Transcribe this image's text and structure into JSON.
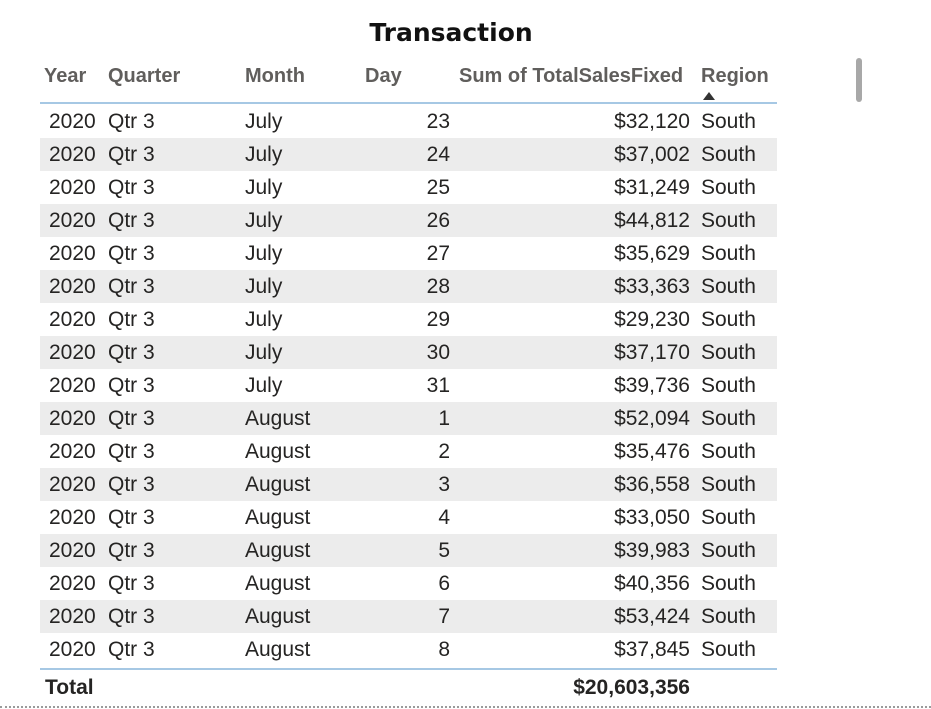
{
  "title": "Transaction",
  "headers": {
    "year": "Year",
    "quarter": "Quarter",
    "month": "Month",
    "day": "Day",
    "sum": "Sum of TotalSalesFixed",
    "region": "Region"
  },
  "sort": {
    "column": "Region",
    "direction": "ascending"
  },
  "rows": [
    {
      "year": "2020",
      "quarter": "Qtr 3",
      "month": "July",
      "day": "23",
      "sum": "$32,120",
      "region": "South"
    },
    {
      "year": "2020",
      "quarter": "Qtr 3",
      "month": "July",
      "day": "24",
      "sum": "$37,002",
      "region": "South"
    },
    {
      "year": "2020",
      "quarter": "Qtr 3",
      "month": "July",
      "day": "25",
      "sum": "$31,249",
      "region": "South"
    },
    {
      "year": "2020",
      "quarter": "Qtr 3",
      "month": "July",
      "day": "26",
      "sum": "$44,812",
      "region": "South"
    },
    {
      "year": "2020",
      "quarter": "Qtr 3",
      "month": "July",
      "day": "27",
      "sum": "$35,629",
      "region": "South"
    },
    {
      "year": "2020",
      "quarter": "Qtr 3",
      "month": "July",
      "day": "28",
      "sum": "$33,363",
      "region": "South"
    },
    {
      "year": "2020",
      "quarter": "Qtr 3",
      "month": "July",
      "day": "29",
      "sum": "$29,230",
      "region": "South"
    },
    {
      "year": "2020",
      "quarter": "Qtr 3",
      "month": "July",
      "day": "30",
      "sum": "$37,170",
      "region": "South"
    },
    {
      "year": "2020",
      "quarter": "Qtr 3",
      "month": "July",
      "day": "31",
      "sum": "$39,736",
      "region": "South"
    },
    {
      "year": "2020",
      "quarter": "Qtr 3",
      "month": "August",
      "day": "1",
      "sum": "$52,094",
      "region": "South"
    },
    {
      "year": "2020",
      "quarter": "Qtr 3",
      "month": "August",
      "day": "2",
      "sum": "$35,476",
      "region": "South"
    },
    {
      "year": "2020",
      "quarter": "Qtr 3",
      "month": "August",
      "day": "3",
      "sum": "$36,558",
      "region": "South"
    },
    {
      "year": "2020",
      "quarter": "Qtr 3",
      "month": "August",
      "day": "4",
      "sum": "$33,050",
      "region": "South"
    },
    {
      "year": "2020",
      "quarter": "Qtr 3",
      "month": "August",
      "day": "5",
      "sum": "$39,983",
      "region": "South"
    },
    {
      "year": "2020",
      "quarter": "Qtr 3",
      "month": "August",
      "day": "6",
      "sum": "$40,356",
      "region": "South"
    },
    {
      "year": "2020",
      "quarter": "Qtr 3",
      "month": "August",
      "day": "7",
      "sum": "$53,424",
      "region": "South"
    },
    {
      "year": "2020",
      "quarter": "Qtr 3",
      "month": "August",
      "day": "8",
      "sum": "$37,845",
      "region": "South"
    }
  ],
  "total": {
    "label": "Total",
    "value": "$20,603,356"
  }
}
